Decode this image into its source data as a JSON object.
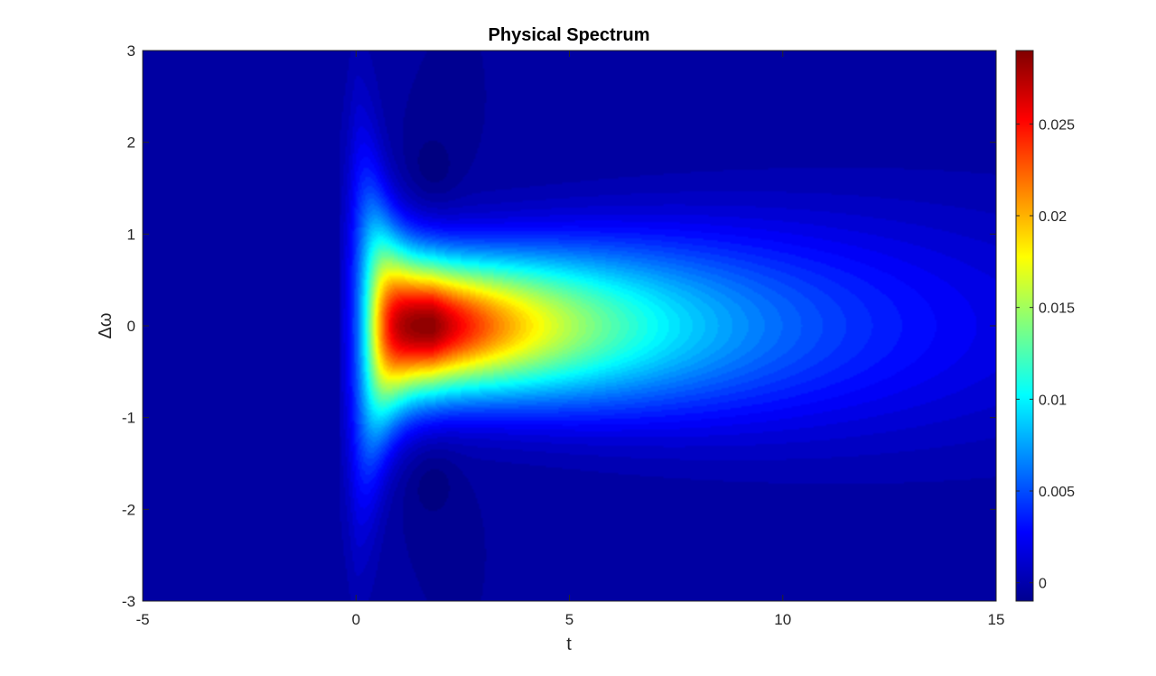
{
  "chart_data": {
    "type": "heatmap",
    "title": "Physical Spectrum",
    "xlabel": "t",
    "ylabel": "Δω",
    "xlim": [
      -5,
      15
    ],
    "ylim": [
      -3,
      3
    ],
    "x_ticks": [
      "-5",
      "0",
      "5",
      "10",
      "15"
    ],
    "y_ticks": [
      "3",
      "2",
      "1",
      "0",
      "-1",
      "-2",
      "-3"
    ],
    "x_tick_values": [
      -5,
      0,
      5,
      10,
      15
    ],
    "y_tick_values": [
      3,
      2,
      1,
      0,
      -1,
      -2,
      -3
    ],
    "colormap": "jet",
    "colorbar": {
      "range": [
        -0.001,
        0.029
      ],
      "ticks": [
        "0",
        "0.005",
        "0.01",
        "0.015",
        "0.02",
        "0.025"
      ],
      "tick_values": [
        0,
        0.005,
        0.01,
        0.015,
        0.02,
        0.025
      ],
      "position": "right"
    },
    "peak": {
      "t": 1.8,
      "delta_omega": 0,
      "value": 0.029
    },
    "grid": false
  }
}
